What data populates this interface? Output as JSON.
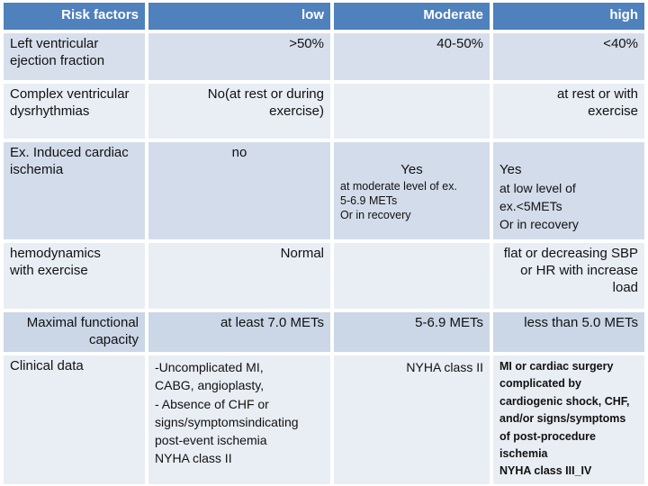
{
  "colors": {
    "header_bg": "#4f81bd",
    "header_text": "#ffffff",
    "row_dark_1": "#d7dfec",
    "row_dark_2": "#d3dcea",
    "row_dark_3": "#cbd6e7",
    "row_light": "#e9edf4",
    "text": "#111111",
    "page_bg": "#ffffff"
  },
  "header": {
    "risk_factors": "Risk factors",
    "low": "low",
    "moderate": "Moderate",
    "high": "high"
  },
  "rows": [
    {
      "factor": "Left ventricular\n ejection fraction",
      "low": ">50%",
      "moderate": "40-50%",
      "high": "<40%"
    },
    {
      "factor": "Complex ventricular\n dysrhythmias",
      "low": "No(at rest or during\nexercise)",
      "moderate": "",
      "high": "at rest or with\nexercise"
    },
    {
      "factor": "Ex. Induced cardiac\nischemia",
      "low": "no",
      "moderate_main": "Yes",
      "moderate_sub": "at moderate level of ex.\n5-6.9 METs\nOr in recovery",
      "high_main": "Yes",
      "high_sub": "at low level of\n ex.<5METs\n Or in recovery"
    },
    {
      "factor": "hemodynamics\nwith exercise",
      "low": "Normal",
      "moderate": "",
      "high": "flat or decreasing SBP\nor HR with increase\nload"
    },
    {
      "factor": "Maximal functional\ncapacity",
      "low": "at least 7.0  METs",
      "moderate": "5-6.9  METs",
      "high": "less than 5.0  METs"
    },
    {
      "factor": "Clinical data",
      "low": "-Uncomplicated MI,\nCABG, angioplasty,\n- Absence of CHF or\nsigns/symptomsindicating\npost-event ischemia\nNYHA class II",
      "moderate": "NYHA class II",
      "high": "MI or cardiac surgery\ncomplicated by\ncardiogenic shock, CHF,\nand/or signs/symptoms\nof post-procedure\nischemia\nNYHA class III_IV"
    }
  ]
}
